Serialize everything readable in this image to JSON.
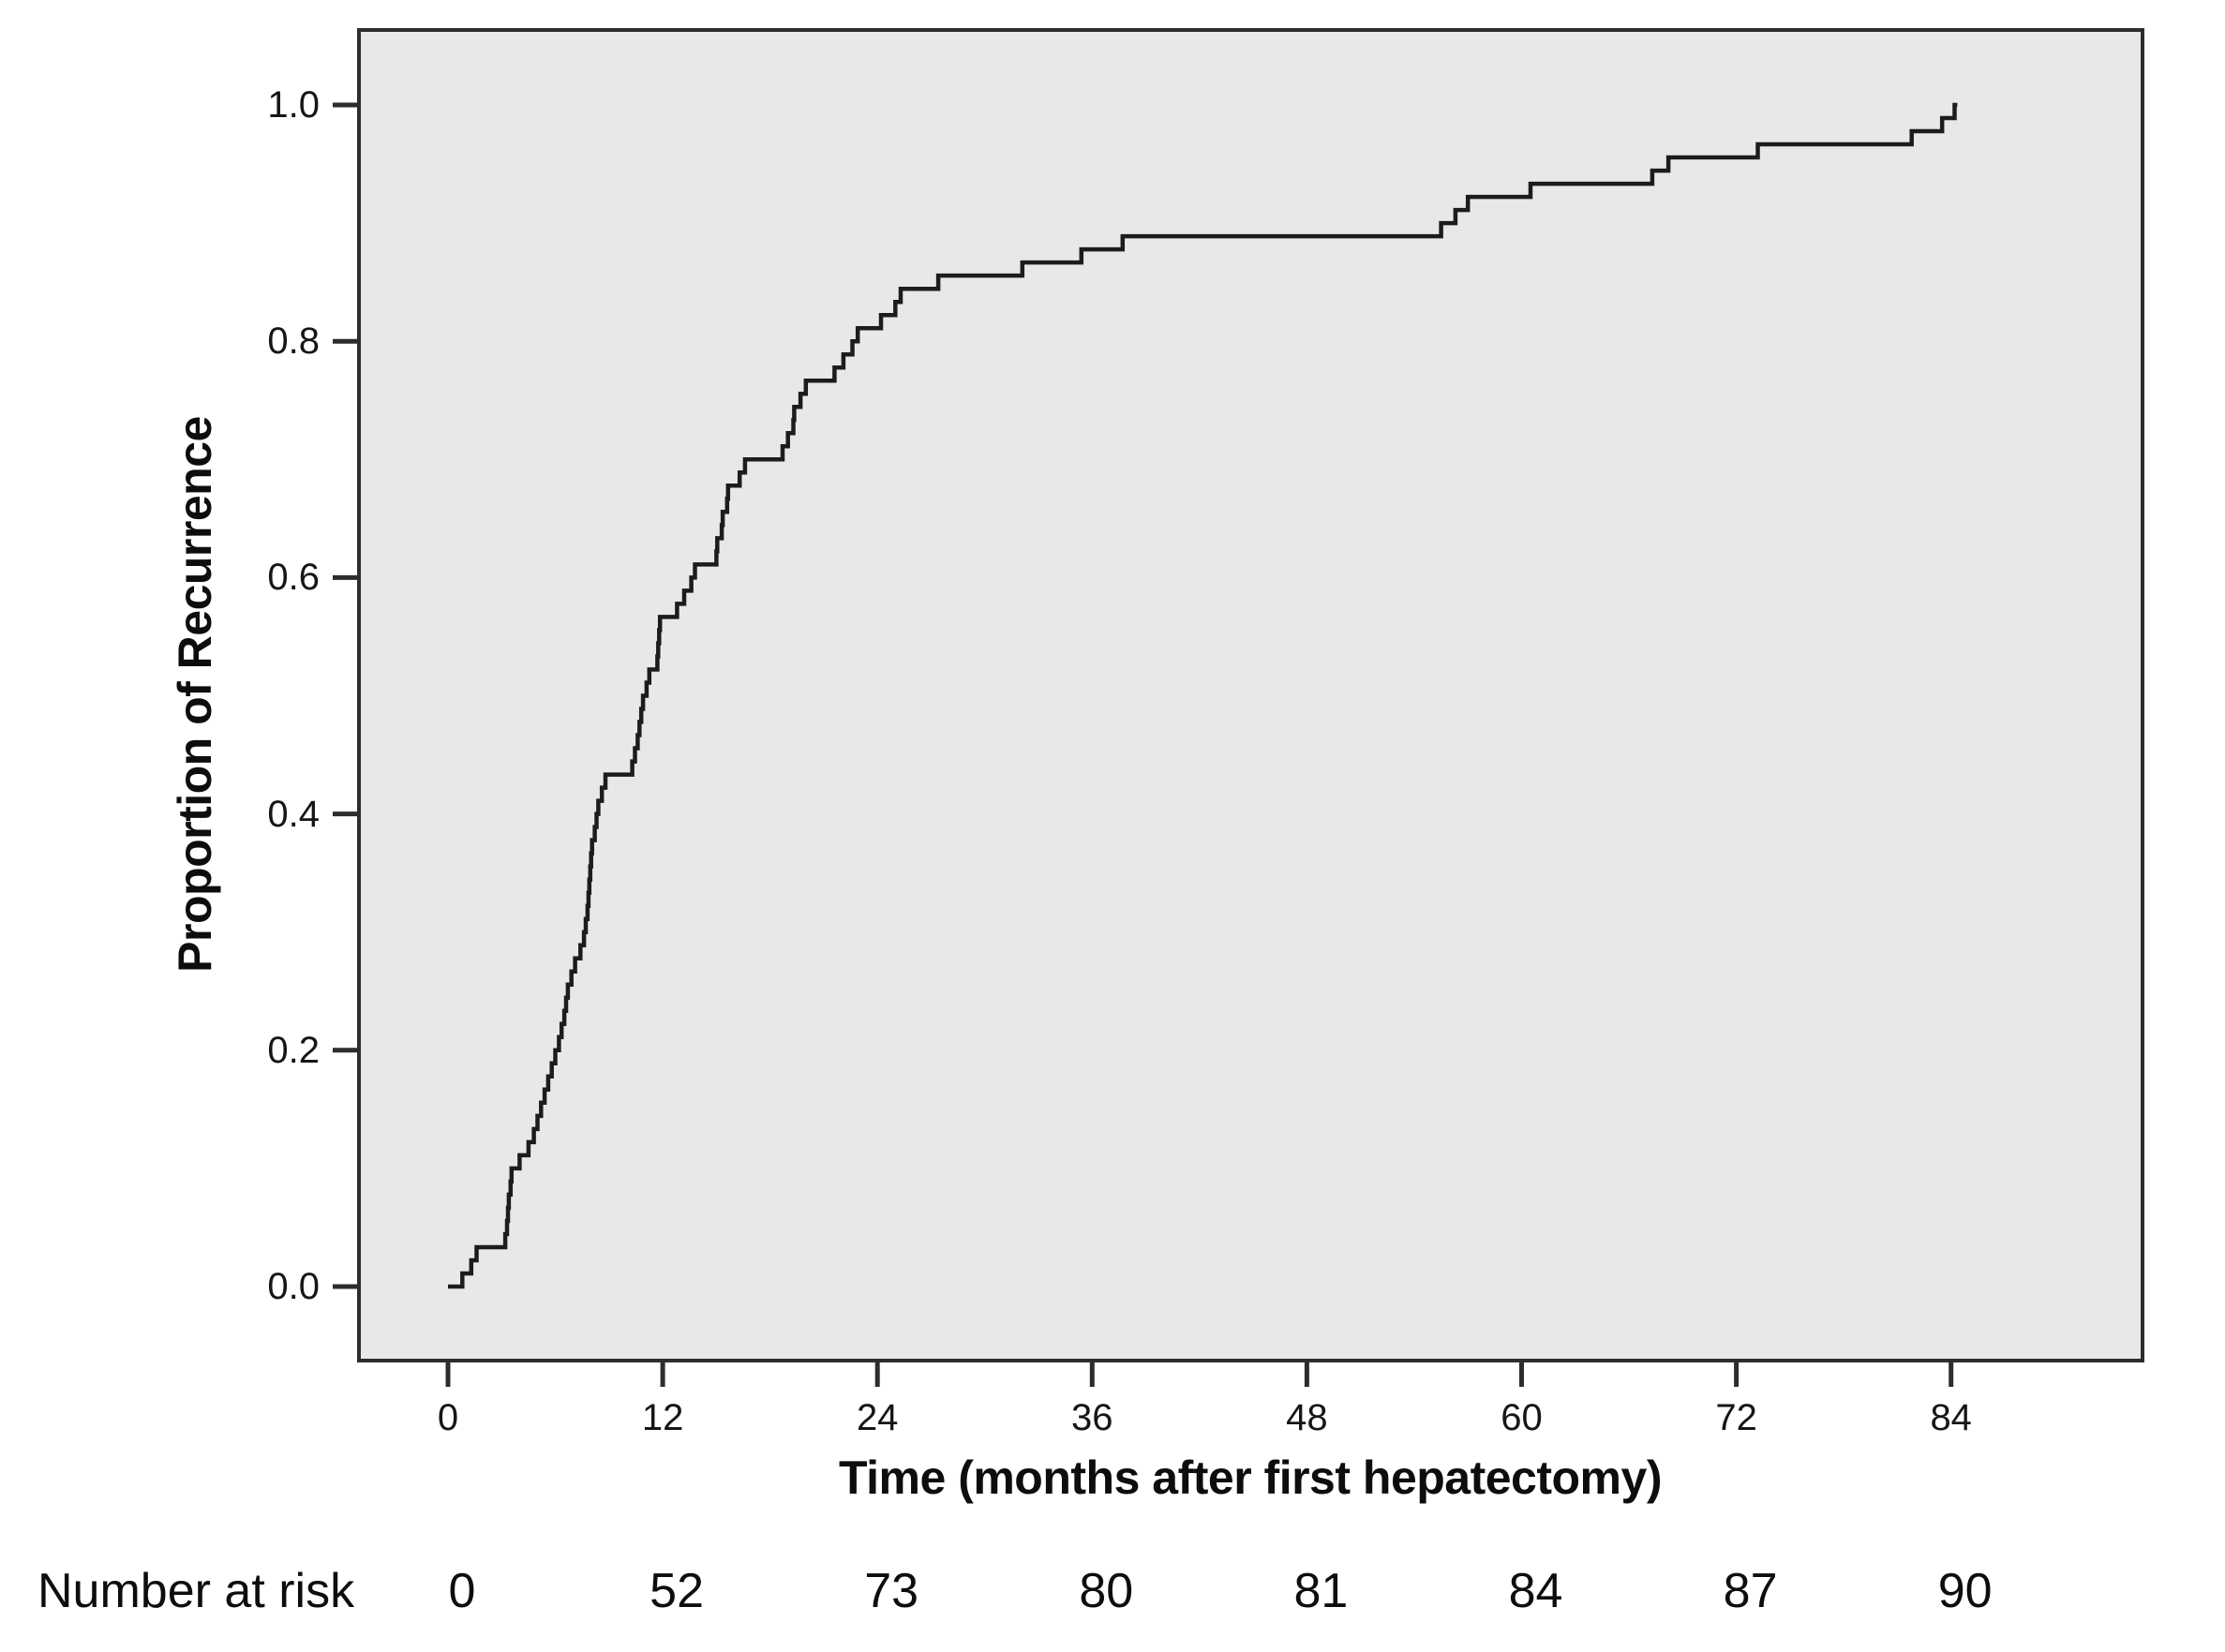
{
  "chart_data": {
    "type": "line",
    "subtype": "kaplan-meier-step-cumulative-incidence",
    "title": "",
    "xlabel": "Time (months after first hepatectomy)",
    "ylabel": "Proportion of Recurrence",
    "x_ticks": [
      0,
      12,
      24,
      36,
      48,
      60,
      72,
      84
    ],
    "y_ticks": [
      1.0,
      0.8,
      0.6,
      0.4,
      0.2,
      0.0
    ],
    "y_tick_labels": [
      "1.0",
      "0.8",
      "0.6",
      "0.4",
      "0.2",
      "0.0"
    ],
    "xlim": [
      -5,
      94.7
    ],
    "ylim": [
      -0.063,
      1.063
    ],
    "grid": false,
    "legend": "none",
    "series": [
      {
        "name": "Proportion of recurrence",
        "n_events_total": 90,
        "start_point": [
          0,
          0.0
        ],
        "end_value": 1.0,
        "step_rule": "proportion after k-th event = k / 90",
        "event_times": [
          0.8,
          1.3,
          1.6,
          3.2,
          3.3,
          3.35,
          3.4,
          3.5,
          3.55,
          4.0,
          4.5,
          4.8,
          5.0,
          5.2,
          5.4,
          5.6,
          5.8,
          6.0,
          6.2,
          6.35,
          6.5,
          6.6,
          6.7,
          6.9,
          7.1,
          7.4,
          7.6,
          7.7,
          7.8,
          7.85,
          7.9,
          7.95,
          8.0,
          8.05,
          8.2,
          8.3,
          8.4,
          8.6,
          8.8,
          10.3,
          10.45,
          10.6,
          10.7,
          10.8,
          10.9,
          11.1,
          11.25,
          11.7,
          11.75,
          11.8,
          11.85,
          12.8,
          13.2,
          13.6,
          13.8,
          15.0,
          15.05,
          15.3,
          15.35,
          15.6,
          15.65,
          16.3,
          16.6,
          18.7,
          19.0,
          19.3,
          19.35,
          19.7,
          20.0,
          21.6,
          22.1,
          22.6,
          22.9,
          24.2,
          25.0,
          25.3,
          27.4,
          32.1,
          35.4,
          37.7,
          55.5,
          56.3,
          57.0,
          60.5,
          67.3,
          68.2,
          73.2,
          81.8,
          83.5,
          84.2
        ]
      }
    ]
  },
  "at_risk_row": {
    "label": "Number at risk",
    "values": [
      "0",
      "52",
      "73",
      "80",
      "81",
      "84",
      "87",
      "90"
    ]
  },
  "colors": {
    "page_background": "#ffffff",
    "plot_background": "#e8e8e8",
    "plot_border": "#2d2d2d",
    "curve": "#1c1c1c",
    "tick": "#2d2d2d",
    "text": "#111111"
  }
}
